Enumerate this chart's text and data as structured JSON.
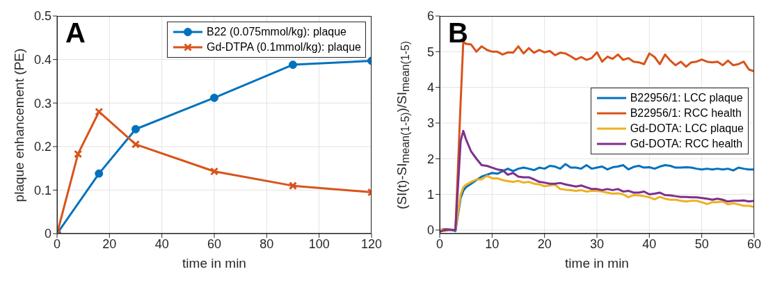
{
  "chart_data": [
    {
      "type": "line",
      "annotations": [
        "A"
      ],
      "xlabel": "time in min",
      "ylabel": "plaque enhancement (PE)",
      "xlim": [
        0,
        120
      ],
      "xticks": [
        0,
        20,
        40,
        60,
        80,
        100,
        120
      ],
      "ylim": [
        0,
        0.5
      ],
      "yticks": [
        0,
        0.1,
        0.2,
        0.3,
        0.4,
        0.5
      ],
      "grid": true,
      "legend": "top right",
      "series": [
        {
          "name": "B22 (0.075mmol/kg): plaque",
          "color": "#0072bd",
          "marker": "circle",
          "x": [
            0,
            16,
            30,
            60,
            90,
            120
          ],
          "values": [
            0,
            0.138,
            0.24,
            0.312,
            0.388,
            0.397
          ]
        },
        {
          "name": "Gd-DTPA (0.1mmol/kg): plaque",
          "color": "#d95319",
          "marker": "cross",
          "x": [
            0,
            8,
            16,
            30,
            60,
            90,
            120
          ],
          "values": [
            0,
            0.183,
            0.28,
            0.205,
            0.143,
            0.11,
            0.095
          ]
        }
      ]
    },
    {
      "type": "line",
      "annotations": [
        "B"
      ],
      "xlabel": "time in min",
      "ylabel": "(SI(t)-SI$_{mean(1-5)}$)/SI$_{mean(1-5)}$",
      "xlim": [
        0,
        60
      ],
      "xticks": [
        0,
        10,
        20,
        30,
        40,
        50,
        60
      ],
      "ylim": [
        -0.1,
        6
      ],
      "yticks": [
        0,
        1,
        2,
        3,
        4,
        5,
        6
      ],
      "grid": true,
      "legend": "right",
      "x": [
        0,
        1,
        2,
        3,
        4,
        4.5,
        5,
        6,
        7,
        8,
        9,
        10,
        11,
        12,
        13,
        14,
        15,
        16,
        17,
        18,
        19,
        20,
        21,
        22,
        23,
        24,
        25,
        26,
        27,
        28,
        29,
        30,
        31,
        32,
        33,
        34,
        35,
        36,
        37,
        38,
        39,
        40,
        41,
        42,
        43,
        44,
        45,
        46,
        47,
        48,
        49,
        50,
        51,
        52,
        53,
        54,
        55,
        56,
        57,
        58,
        59,
        60
      ],
      "series": [
        {
          "name": "B22956/1: LCC plaque",
          "color": "#0072bd",
          "values": [
            0,
            0.02,
            0.02,
            -0.03,
            0.9,
            1.1,
            1.2,
            1.3,
            1.4,
            1.5,
            1.55,
            1.6,
            1.58,
            1.65,
            1.72,
            1.65,
            1.72,
            1.75,
            1.72,
            1.68,
            1.75,
            1.72,
            1.8,
            1.78,
            1.72,
            1.85,
            1.75,
            1.75,
            1.72,
            1.82,
            1.72,
            1.75,
            1.78,
            1.7,
            1.76,
            1.78,
            1.82,
            1.7,
            1.77,
            1.8,
            1.75,
            1.76,
            1.72,
            1.78,
            1.82,
            1.8,
            1.75,
            1.75,
            1.76,
            1.75,
            1.72,
            1.7,
            1.72,
            1.7,
            1.72,
            1.7,
            1.72,
            1.67,
            1.75,
            1.72,
            1.7,
            1.7
          ]
        },
        {
          "name": "B22956/1: RCC health",
          "color": "#d95319",
          "values": [
            0,
            0.02,
            0,
            0,
            3.6,
            5.28,
            5.22,
            5.2,
            5.0,
            5.15,
            5.05,
            5.0,
            5.0,
            4.92,
            4.98,
            4.97,
            5.15,
            4.95,
            5.1,
            4.97,
            5.05,
            4.98,
            5.02,
            4.9,
            4.97,
            4.95,
            4.87,
            4.78,
            4.85,
            4.77,
            4.82,
            4.98,
            4.72,
            4.86,
            4.8,
            4.92,
            4.77,
            4.82,
            4.72,
            4.7,
            4.65,
            4.95,
            4.85,
            4.65,
            4.92,
            4.75,
            4.62,
            4.72,
            4.58,
            4.7,
            4.72,
            4.78,
            4.72,
            4.7,
            4.72,
            4.62,
            4.75,
            4.62,
            4.65,
            4.72,
            4.5,
            4.45
          ]
        },
        {
          "name": "Gd-DOTA: LCC plaque",
          "color": "#edb120",
          "values": [
            0.02,
            -0.03,
            0.02,
            0,
            1.0,
            1.2,
            1.27,
            1.35,
            1.42,
            1.42,
            1.52,
            1.45,
            1.45,
            1.4,
            1.37,
            1.35,
            1.38,
            1.33,
            1.35,
            1.3,
            1.28,
            1.23,
            1.25,
            1.27,
            1.15,
            1.13,
            1.12,
            1.1,
            1.12,
            1.08,
            1.1,
            1.1,
            1.08,
            1.05,
            1.02,
            1.03,
            1.0,
            0.92,
            0.98,
            0.97,
            0.95,
            0.92,
            0.86,
            0.93,
            0.88,
            0.85,
            0.85,
            0.82,
            0.8,
            0.82,
            0.82,
            0.78,
            0.73,
            0.78,
            0.78,
            0.8,
            0.72,
            0.75,
            0.72,
            0.68,
            0.68,
            0.65
          ]
        },
        {
          "name": "Gd-DOTA: RCC health",
          "color": "#7e2f8e",
          "values": [
            -0.05,
            0,
            0,
            0,
            2.5,
            2.78,
            2.55,
            2.2,
            2.0,
            1.82,
            1.8,
            1.75,
            1.7,
            1.68,
            1.55,
            1.6,
            1.5,
            1.48,
            1.48,
            1.42,
            1.35,
            1.33,
            1.3,
            1.3,
            1.32,
            1.28,
            1.25,
            1.22,
            1.25,
            1.2,
            1.15,
            1.15,
            1.12,
            1.15,
            1.12,
            1.15,
            1.08,
            1.1,
            1.05,
            1.05,
            1.08,
            1.0,
            1.02,
            1.05,
            0.98,
            0.97,
            0.95,
            0.93,
            0.93,
            0.92,
            0.92,
            0.9,
            0.88,
            0.85,
            0.88,
            0.85,
            0.8,
            0.82,
            0.82,
            0.83,
            0.8,
            0.82
          ]
        }
      ]
    }
  ]
}
